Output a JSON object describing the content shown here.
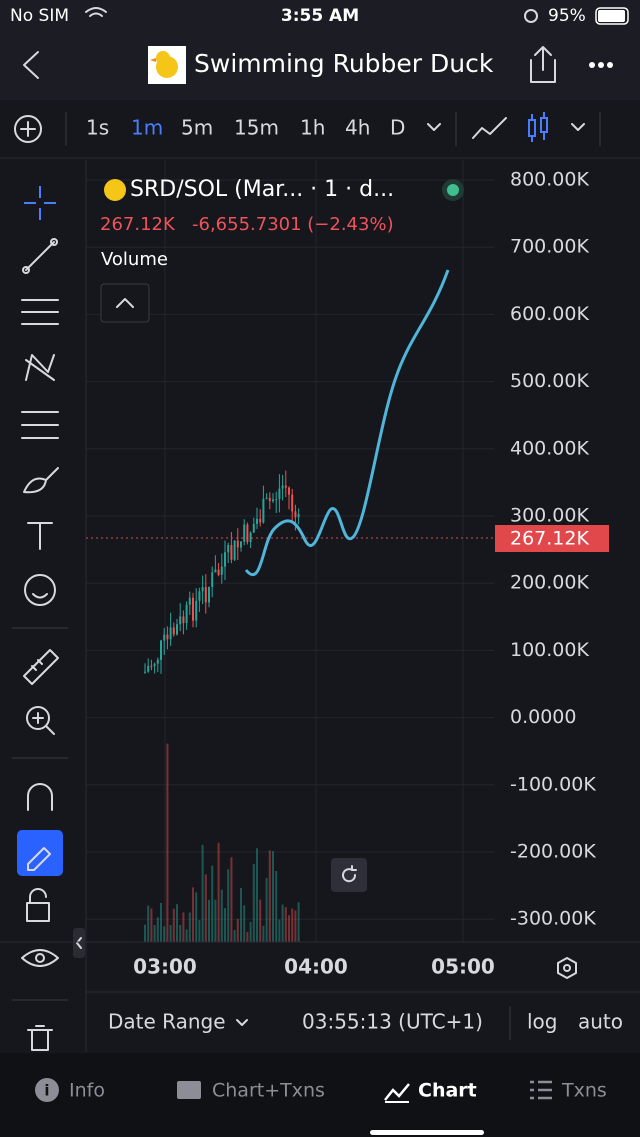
{
  "status_bar": {
    "carrier": "No SIM",
    "time": "3:55 AM",
    "battery": "95%"
  },
  "header": {
    "title": "Swimming Rubber Duck"
  },
  "timeframes": [
    "1s",
    "1m",
    "5m",
    "15m",
    "1h",
    "4h",
    "D"
  ],
  "legend": {
    "symbol": "SRD/SOL (Mar... · 1 · d...",
    "price": "267.12K",
    "change": "-6,655.7301 (−2.43%)",
    "volume": "Volume"
  },
  "price_axis": {
    "labels": [
      "800.00K",
      "700.00K",
      "600.00K",
      "500.00K",
      "400.00K",
      "300.00K",
      "200.00K",
      "100.00K",
      "0.0000",
      "-100.00K",
      "-200.00K",
      "-300.00K"
    ],
    "last_price": "267.12K"
  },
  "time_axis": {
    "labels": [
      "03:00",
      "04:00",
      "05:00"
    ]
  },
  "footer": {
    "date_range": "Date Range",
    "clock": "03:55:13 (UTC+1)",
    "log": "log",
    "auto": "auto"
  },
  "tabs": [
    "Info",
    "Chart+Txns",
    "Chart",
    "Txns"
  ]
}
